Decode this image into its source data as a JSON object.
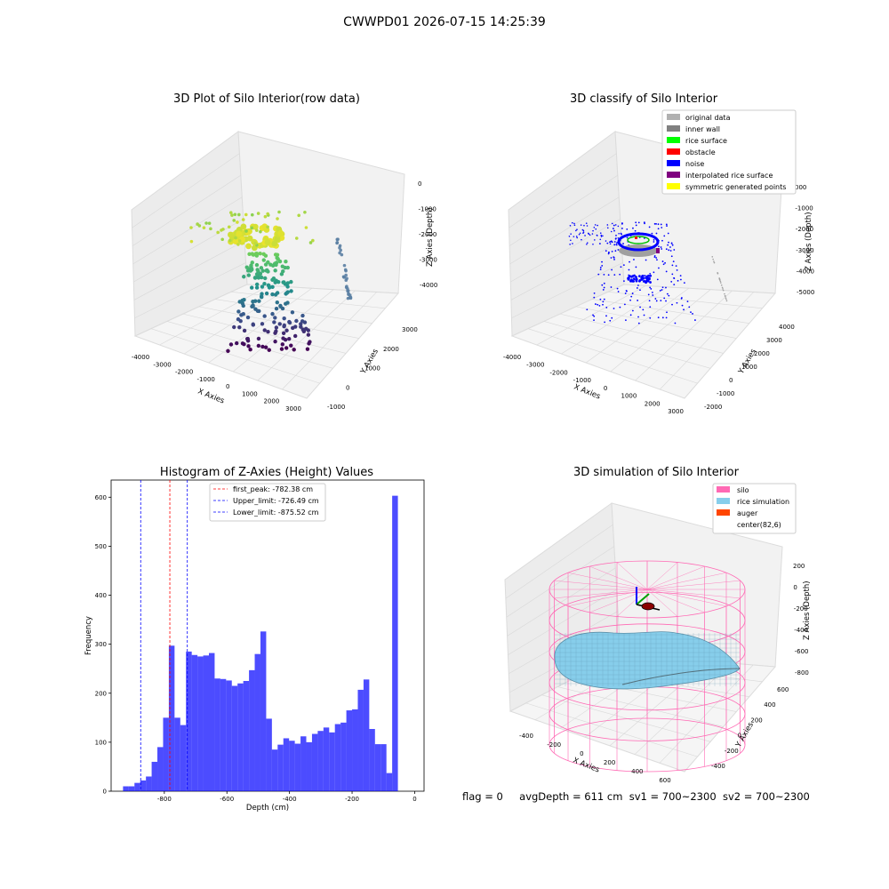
{
  "figure": {
    "title": "CWWPD01 2026-07-15 14:25:39",
    "status": {
      "flag": "flag = 0",
      "avg_depth": "avgDepth = 611 cm",
      "sv1": "sv1 = 700~2300",
      "sv2": "sv2 = 700~2300"
    }
  },
  "panels": {
    "raw": {
      "title": "3D Plot of Silo Interior(row data)",
      "xlabel": "X Axies",
      "ylabel": "Y Axies",
      "zlabel": "Z Axies (Depth)",
      "xticks": [
        "-4000",
        "-3000",
        "-2000",
        "-1000",
        "0",
        "1000",
        "2000",
        "3000"
      ],
      "yticks": [
        "-1000",
        "0",
        "1000",
        "2000",
        "3000"
      ],
      "zticks": [
        "0",
        "-1000",
        "-2000",
        "-3000",
        "-4000"
      ],
      "colormap": "viridis"
    },
    "classify": {
      "title": "3D classify of Silo Interior",
      "xlabel": "X Axies",
      "ylabel": "Y Axies",
      "zlabel": "Z Axies (Depth)",
      "xticks": [
        "-4000",
        "-3000",
        "-2000",
        "-1000",
        "0",
        "1000",
        "2000",
        "3000"
      ],
      "yticks": [
        "-2000",
        "-1000",
        "0",
        "1000",
        "2000",
        "3000",
        "4000"
      ],
      "zticks": [
        "000",
        "-1000",
        "-2000",
        "-3000",
        "-4000",
        "-5000"
      ],
      "legend": [
        {
          "label": "original data",
          "color": "#b0b0b0"
        },
        {
          "label": "inner wall",
          "color": "#808080"
        },
        {
          "label": "rice surface",
          "color": "#00ff00"
        },
        {
          "label": "obstacle",
          "color": "#ff0000"
        },
        {
          "label": "noise",
          "color": "#0000ff"
        },
        {
          "label": "interpolated rice surface",
          "color": "#800080"
        },
        {
          "label": "symmetric generated points",
          "color": "#ffff00"
        }
      ]
    },
    "simulation": {
      "title": "3D simulation of Silo Interior",
      "xlabel": "X Axies",
      "ylabel": "Y Axies",
      "zlabel": "Z Axies (Depth)",
      "xticks": [
        "-400",
        "-200",
        "0",
        "200",
        "400",
        "600"
      ],
      "yticks": [
        "-400",
        "-200",
        "0",
        "200",
        "400",
        "600"
      ],
      "zticks": [
        "200",
        "0",
        "-200",
        "-400",
        "-600",
        "-800"
      ],
      "legend": [
        {
          "label": "silo",
          "color": "#ff69b4"
        },
        {
          "label": "rice simulation",
          "color": "#87ceeb"
        },
        {
          "label": "auger",
          "color": "#ff4500"
        },
        {
          "label": "center(82,6)",
          "color": ""
        }
      ]
    }
  },
  "chart_data": {
    "type": "bar",
    "title": "Histogram of Z-Axies (Height) Values",
    "xlabel": "Depth (cm)",
    "ylabel": "Frequency",
    "xlim": [
      -970,
      30
    ],
    "ylim": [
      0,
      635
    ],
    "xticks": [
      -800,
      -600,
      -400,
      -200,
      0
    ],
    "yticks": [
      0,
      100,
      200,
      300,
      400,
      500,
      600
    ],
    "bar_color": "#0000ff",
    "bin_start": -932,
    "bin_width": 18.3,
    "values": [
      10,
      10,
      17,
      22,
      30,
      60,
      90,
      150,
      297,
      150,
      135,
      285,
      278,
      275,
      277,
      282,
      230,
      229,
      226,
      215,
      220,
      225,
      247,
      280,
      326,
      148,
      85,
      95,
      108,
      103,
      97,
      112,
      100,
      117,
      123,
      130,
      120,
      137,
      140,
      165,
      167,
      207,
      228,
      127,
      96,
      96,
      37,
      603
    ],
    "lines": [
      {
        "label": "first_peak: -782.38 cm",
        "x": -782.38,
        "color": "#ff0000"
      },
      {
        "label": "Upper_limit: -726.49 cm",
        "x": -726.49,
        "color": "#0000ff"
      },
      {
        "label": "Lower_limit: -875.52 cm",
        "x": -875.52,
        "color": "#0000ff"
      }
    ]
  }
}
